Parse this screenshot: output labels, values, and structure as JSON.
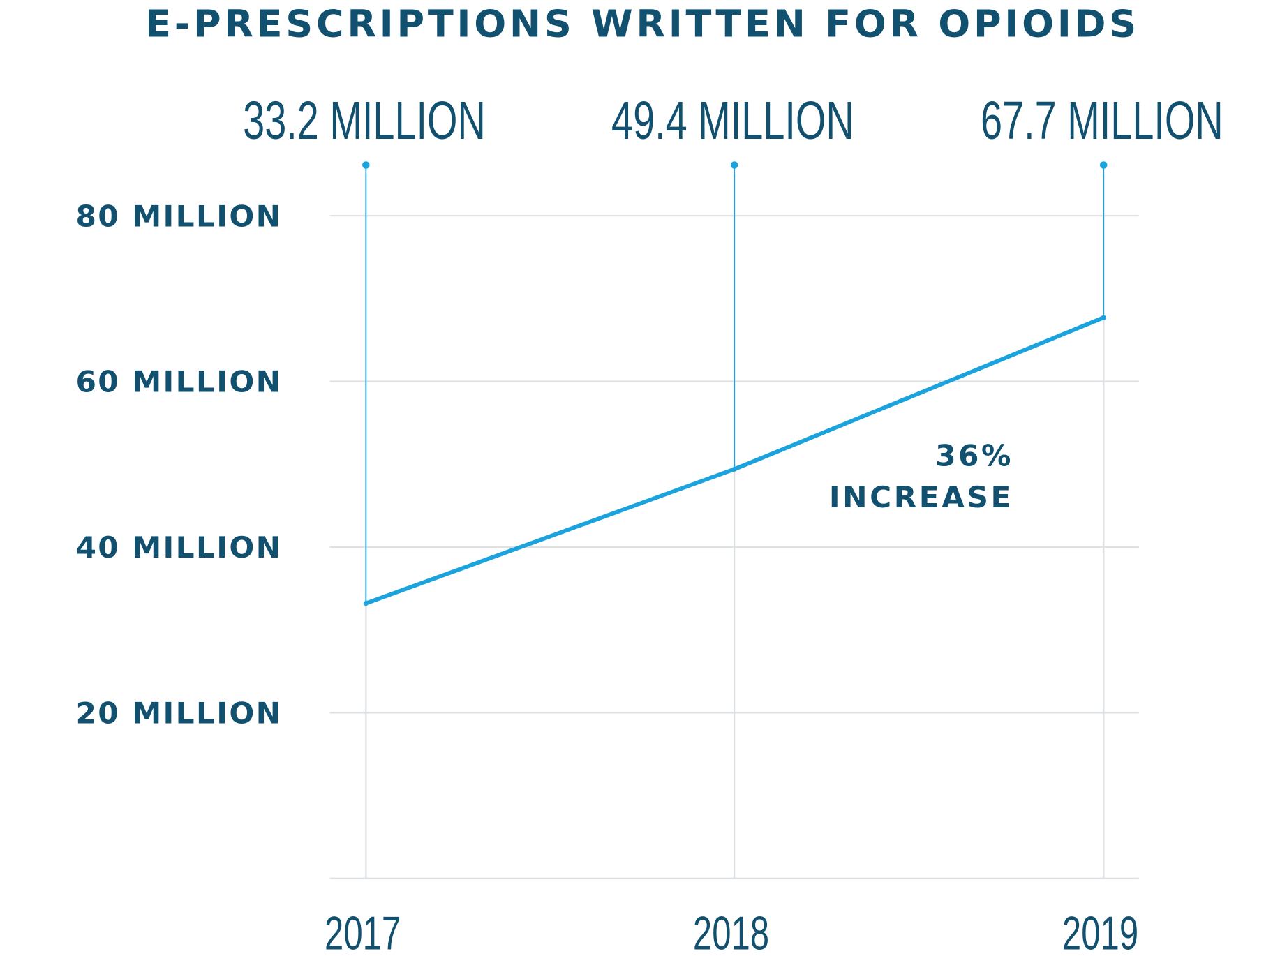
{
  "chart_data": {
    "type": "line",
    "title": "E-PRESCRIPTIONS WRITTEN FOR OPIOIDS",
    "categories": [
      "2017",
      "2018",
      "2019"
    ],
    "values": [
      33.2,
      49.4,
      67.7
    ],
    "value_labels": [
      "33.2 MILLION",
      "49.4 MILLION",
      "67.7 MILLION"
    ],
    "yticks": [
      20,
      40,
      60,
      80
    ],
    "ytick_labels": [
      "20 MILLION",
      "40 MILLION",
      "60 MILLION",
      "80 MILLION"
    ],
    "ylim": [
      0,
      80
    ],
    "xlabel": "",
    "ylabel": "",
    "grid": true,
    "annotation": {
      "line1": "36%",
      "line2": "INCREASE"
    },
    "colors": {
      "text": "#12506f",
      "line": "#1ba3de",
      "grid": "#dde1e4"
    }
  }
}
